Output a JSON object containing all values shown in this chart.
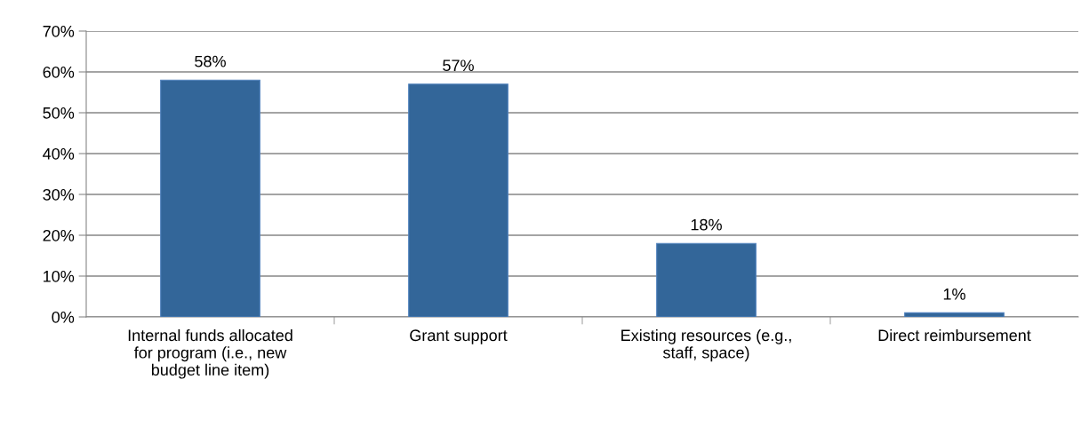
{
  "chart_data": {
    "type": "bar",
    "categories": [
      "Internal funds allocated\nfor program (i.e., new\nbudget line item)",
      "Grant support",
      "Existing resources (e.g.,\nstaff, space)",
      "Direct reimbursement"
    ],
    "values": [
      58,
      57,
      18,
      1
    ],
    "value_labels": [
      "58%",
      "57%",
      "18%",
      "1%"
    ],
    "color": "#336699",
    "ylim": [
      0,
      70
    ],
    "yticks": [
      {
        "value": 0,
        "label": "0%"
      },
      {
        "value": 10,
        "label": "10%"
      },
      {
        "value": 20,
        "label": "20%"
      },
      {
        "value": 30,
        "label": "30%"
      },
      {
        "value": 40,
        "label": "40%"
      },
      {
        "value": 50,
        "label": "50%"
      },
      {
        "value": 60,
        "label": "60%"
      },
      {
        "value": 70,
        "label": "70%"
      }
    ],
    "grid": "y",
    "legend": false
  }
}
